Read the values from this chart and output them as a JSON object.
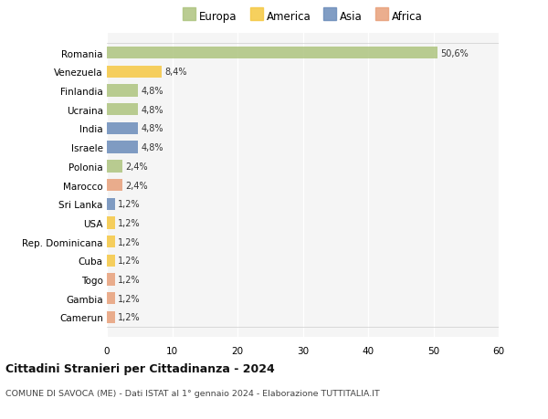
{
  "countries": [
    "Romania",
    "Venezuela",
    "Finlandia",
    "Ucraina",
    "India",
    "Israele",
    "Polonia",
    "Marocco",
    "Sri Lanka",
    "USA",
    "Rep. Dominicana",
    "Cuba",
    "Togo",
    "Gambia",
    "Camerun"
  ],
  "values": [
    50.6,
    8.4,
    4.8,
    4.8,
    4.8,
    4.8,
    2.4,
    2.4,
    1.2,
    1.2,
    1.2,
    1.2,
    1.2,
    1.2,
    1.2
  ],
  "labels": [
    "50,6%",
    "8,4%",
    "4,8%",
    "4,8%",
    "4,8%",
    "4,8%",
    "2,4%",
    "2,4%",
    "1,2%",
    "1,2%",
    "1,2%",
    "1,2%",
    "1,2%",
    "1,2%",
    "1,2%"
  ],
  "colors": [
    "#aec47f",
    "#f5c842",
    "#aec47f",
    "#aec47f",
    "#6b8cba",
    "#6b8cba",
    "#aec47f",
    "#e8a07a",
    "#6b8cba",
    "#f5c842",
    "#f5c842",
    "#f5c842",
    "#e8a07a",
    "#e8a07a",
    "#e8a07a"
  ],
  "legend_labels": [
    "Europa",
    "America",
    "Asia",
    "Africa"
  ],
  "legend_colors": [
    "#aec47f",
    "#f5c842",
    "#6b8cba",
    "#e8a07a"
  ],
  "title": "Cittadini Stranieri per Cittadinanza - 2024",
  "subtitle": "COMUNE DI SAVOCA (ME) - Dati ISTAT al 1° gennaio 2024 - Elaborazione TUTTITALIA.IT",
  "xlim": [
    0,
    60
  ],
  "xticks": [
    0,
    10,
    20,
    30,
    40,
    50,
    60
  ],
  "bg_color": "#ffffff",
  "plot_bg_color": "#f5f5f5",
  "grid_color": "#ffffff",
  "bar_height": 0.65
}
